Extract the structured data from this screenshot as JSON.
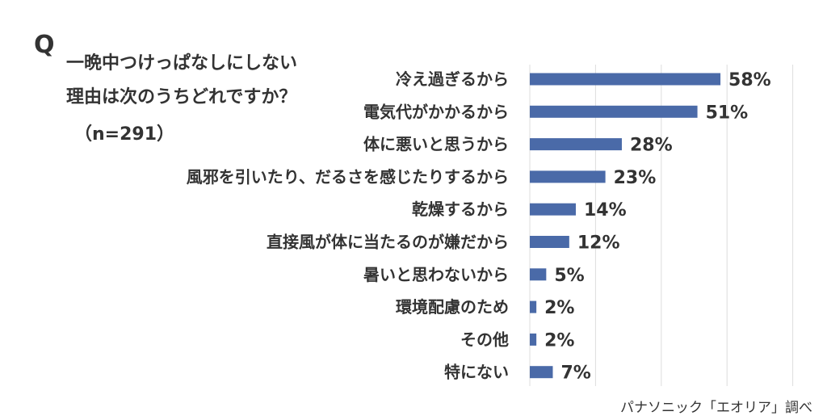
{
  "question": {
    "mark": "Q",
    "line1": "一晩中つけっぱなしにしない",
    "line2": "理由は次のうちどれですか？",
    "line3": "（n=291）"
  },
  "source": "パナソニック「エオリア」調べ",
  "chart_data": {
    "type": "bar",
    "orientation": "horizontal",
    "categories": [
      "冷え過ぎるから",
      "電気代がかかるから",
      "体に悪いと思うから",
      "風邪を引いたり、だるさを感じたりするから",
      "乾燥するから",
      "直接風が体に当たるのが嫌だから",
      "暑いと思わないから",
      "環境配慮のため",
      "その他",
      "特にない"
    ],
    "values": [
      58,
      51,
      28,
      23,
      14,
      12,
      5,
      2,
      2,
      7
    ],
    "value_labels": [
      "58%",
      "51%",
      "28%",
      "23%",
      "14%",
      "12%",
      "5%",
      "2%",
      "2%",
      "7%"
    ],
    "xlim": [
      0,
      80
    ],
    "grid": "vertical",
    "bar_color": "#4a6aa8",
    "grid_color": "#dddddd"
  }
}
